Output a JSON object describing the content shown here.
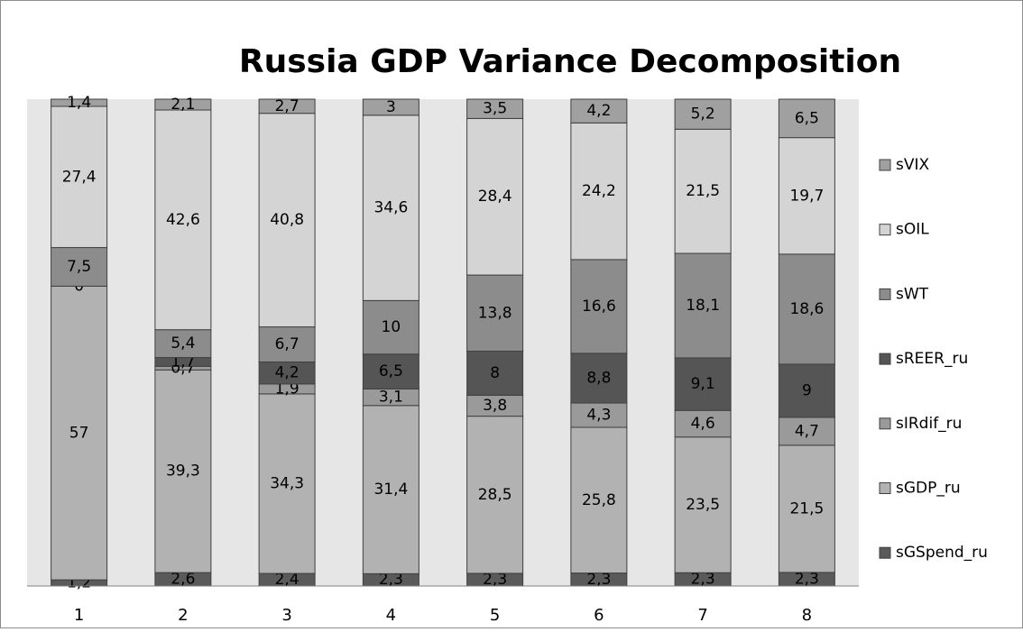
{
  "chart_data": {
    "type": "bar",
    "stacked": "percent",
    "title": "Russia GDP Variance Decomposition",
    "categories": [
      "1",
      "2",
      "3",
      "4",
      "5",
      "6",
      "7",
      "8"
    ],
    "legend": "right",
    "series": [
      {
        "name": "sGSpend_ru",
        "color": "#5a5a5a",
        "values": [
          1.2,
          2.6,
          2.4,
          2.3,
          2.3,
          2.3,
          2.3,
          2.3
        ],
        "value_labels": [
          "1,2",
          "2,6",
          "2,4",
          "2,3",
          "2,3",
          "2,3",
          "2,3",
          "2,3"
        ]
      },
      {
        "name": "sGDP_ru",
        "color": "#b2b2b2",
        "values": [
          57,
          39.3,
          34.3,
          31.4,
          28.5,
          25.8,
          23.5,
          21.5
        ],
        "value_labels": [
          "57",
          "39,3",
          "34,3",
          "31,4",
          "28,5",
          "25,8",
          "23,5",
          "21,5"
        ]
      },
      {
        "name": "sIRdif_ru",
        "color": "#9a9a9a",
        "values": [
          0,
          0.7,
          1.9,
          3.1,
          3.8,
          4.3,
          4.6,
          4.7
        ],
        "value_labels": [
          "0",
          "0,7",
          "1,9",
          "3,1",
          "3,8",
          "4,3",
          "4,6",
          "4,7"
        ]
      },
      {
        "name": "sREER_ru",
        "color": "#555555",
        "values": [
          null,
          1.7,
          4.2,
          6.5,
          8,
          8.8,
          9.1,
          9
        ],
        "value_labels": [
          null,
          "1,7",
          "4,2",
          "6,5",
          "8",
          "8,8",
          "9,1",
          "9"
        ]
      },
      {
        "name": "sWT",
        "color": "#8c8c8c",
        "values": [
          7.5,
          5.4,
          6.7,
          10,
          13.8,
          16.6,
          18.1,
          18.6
        ],
        "value_labels": [
          "7,5",
          "5,4",
          "6,7",
          "10",
          "13,8",
          "16,6",
          "18,1",
          "18,6"
        ]
      },
      {
        "name": "sOIL",
        "color": "#d4d4d4",
        "values": [
          27.4,
          42.6,
          40.8,
          34.6,
          28.4,
          24.2,
          21.5,
          19.7
        ],
        "value_labels": [
          "27,4",
          "42,6",
          "40,8",
          "34,6",
          "28,4",
          "24,2",
          "21,5",
          "19,7"
        ]
      },
      {
        "name": "sVIX",
        "color": "#a0a0a0",
        "values": [
          1.4,
          2.1,
          2.7,
          3,
          3.5,
          4.2,
          5.2,
          6.5
        ],
        "value_labels": [
          "1,4",
          "2,1",
          "2,7",
          "3",
          "3,5",
          "4,2",
          "5,2",
          "6,5"
        ]
      }
    ]
  }
}
